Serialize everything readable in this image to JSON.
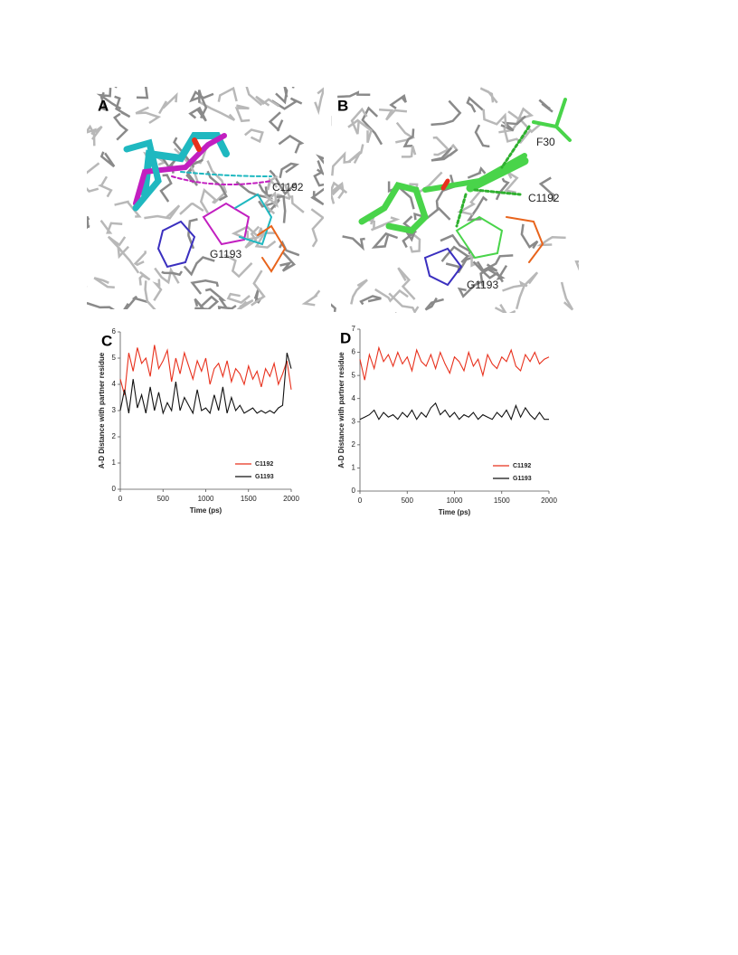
{
  "figures": [
    {
      "label": "A",
      "annotations": [
        "C1192",
        "G1193"
      ]
    },
    {
      "label": "B",
      "annotations": [
        "F30",
        "C1192",
        "G1193"
      ]
    }
  ],
  "chart_data": [
    {
      "type": "line",
      "panel_label": "C",
      "x_label": "Time (ps)",
      "y_label": "A-D Distance with partner residue",
      "x": [
        0,
        50,
        100,
        150,
        200,
        250,
        300,
        350,
        400,
        450,
        500,
        550,
        600,
        650,
        700,
        750,
        800,
        850,
        900,
        950,
        1000,
        1050,
        1100,
        1150,
        1200,
        1250,
        1300,
        1350,
        1400,
        1450,
        1500,
        1550,
        1600,
        1650,
        1700,
        1750,
        1800,
        1850,
        1900,
        1950,
        2000
      ],
      "xlim": [
        0,
        2000
      ],
      "xticks": [
        0,
        500,
        1000,
        1500,
        2000
      ],
      "ylim": [
        0,
        6
      ],
      "yticks": [
        0,
        1,
        2,
        3,
        4,
        5,
        6
      ],
      "legend": "lower right",
      "series": [
        {
          "name": "C1192",
          "color": "#e8301c",
          "values": [
            4.2,
            3.6,
            5.2,
            4.5,
            5.4,
            4.8,
            5.0,
            4.3,
            5.5,
            4.6,
            4.9,
            5.3,
            4.1,
            5.0,
            4.4,
            5.2,
            4.7,
            4.2,
            4.9,
            4.5,
            5.0,
            4.0,
            4.6,
            4.8,
            4.3,
            4.9,
            4.1,
            4.6,
            4.4,
            4.0,
            4.7,
            4.2,
            4.5,
            3.9,
            4.6,
            4.3,
            4.8,
            4.0,
            4.4,
            4.9,
            3.8
          ]
        },
        {
          "name": "G1193",
          "color": "#111111",
          "values": [
            3.0,
            3.8,
            2.9,
            4.2,
            3.1,
            3.6,
            2.9,
            3.9,
            3.0,
            3.7,
            2.9,
            3.3,
            3.0,
            4.1,
            3.0,
            3.5,
            3.2,
            2.9,
            3.8,
            3.0,
            3.1,
            2.9,
            3.6,
            3.0,
            3.9,
            2.9,
            3.5,
            3.0,
            3.2,
            2.9,
            3.0,
            3.1,
            2.9,
            3.0,
            2.9,
            3.0,
            2.9,
            3.1,
            3.2,
            5.2,
            4.6
          ]
        }
      ]
    },
    {
      "type": "line",
      "panel_label": "D",
      "x_label": "Time (ps)",
      "y_label": "A-D Distance with partner residue",
      "x": [
        0,
        50,
        100,
        150,
        200,
        250,
        300,
        350,
        400,
        450,
        500,
        550,
        600,
        650,
        700,
        750,
        800,
        850,
        900,
        950,
        1000,
        1050,
        1100,
        1150,
        1200,
        1250,
        1300,
        1350,
        1400,
        1450,
        1500,
        1550,
        1600,
        1650,
        1700,
        1750,
        1800,
        1850,
        1900,
        1950,
        2000
      ],
      "xlim": [
        0,
        2000
      ],
      "xticks": [
        0,
        500,
        1000,
        1500,
        2000
      ],
      "ylim": [
        0,
        7
      ],
      "yticks": [
        0,
        1,
        2,
        3,
        4,
        5,
        6,
        7
      ],
      "legend": "lower right",
      "series": [
        {
          "name": "C1192",
          "color": "#e8301c",
          "values": [
            5.7,
            4.8,
            5.9,
            5.3,
            6.2,
            5.6,
            5.9,
            5.4,
            6.0,
            5.5,
            5.8,
            5.2,
            6.1,
            5.6,
            5.4,
            5.9,
            5.3,
            6.0,
            5.5,
            5.1,
            5.8,
            5.6,
            5.2,
            6.0,
            5.4,
            5.7,
            5.0,
            5.9,
            5.5,
            5.3,
            5.8,
            5.6,
            6.1,
            5.4,
            5.2,
            5.9,
            5.6,
            6.0,
            5.5,
            5.7,
            5.8
          ]
        },
        {
          "name": "G1193",
          "color": "#111111",
          "values": [
            3.1,
            3.2,
            3.3,
            3.5,
            3.1,
            3.4,
            3.2,
            3.3,
            3.1,
            3.4,
            3.2,
            3.5,
            3.1,
            3.4,
            3.2,
            3.6,
            3.8,
            3.3,
            3.5,
            3.2,
            3.4,
            3.1,
            3.3,
            3.2,
            3.4,
            3.1,
            3.3,
            3.2,
            3.1,
            3.4,
            3.2,
            3.5,
            3.1,
            3.7,
            3.2,
            3.6,
            3.3,
            3.1,
            3.4,
            3.1,
            3.1
          ]
        }
      ]
    }
  ]
}
